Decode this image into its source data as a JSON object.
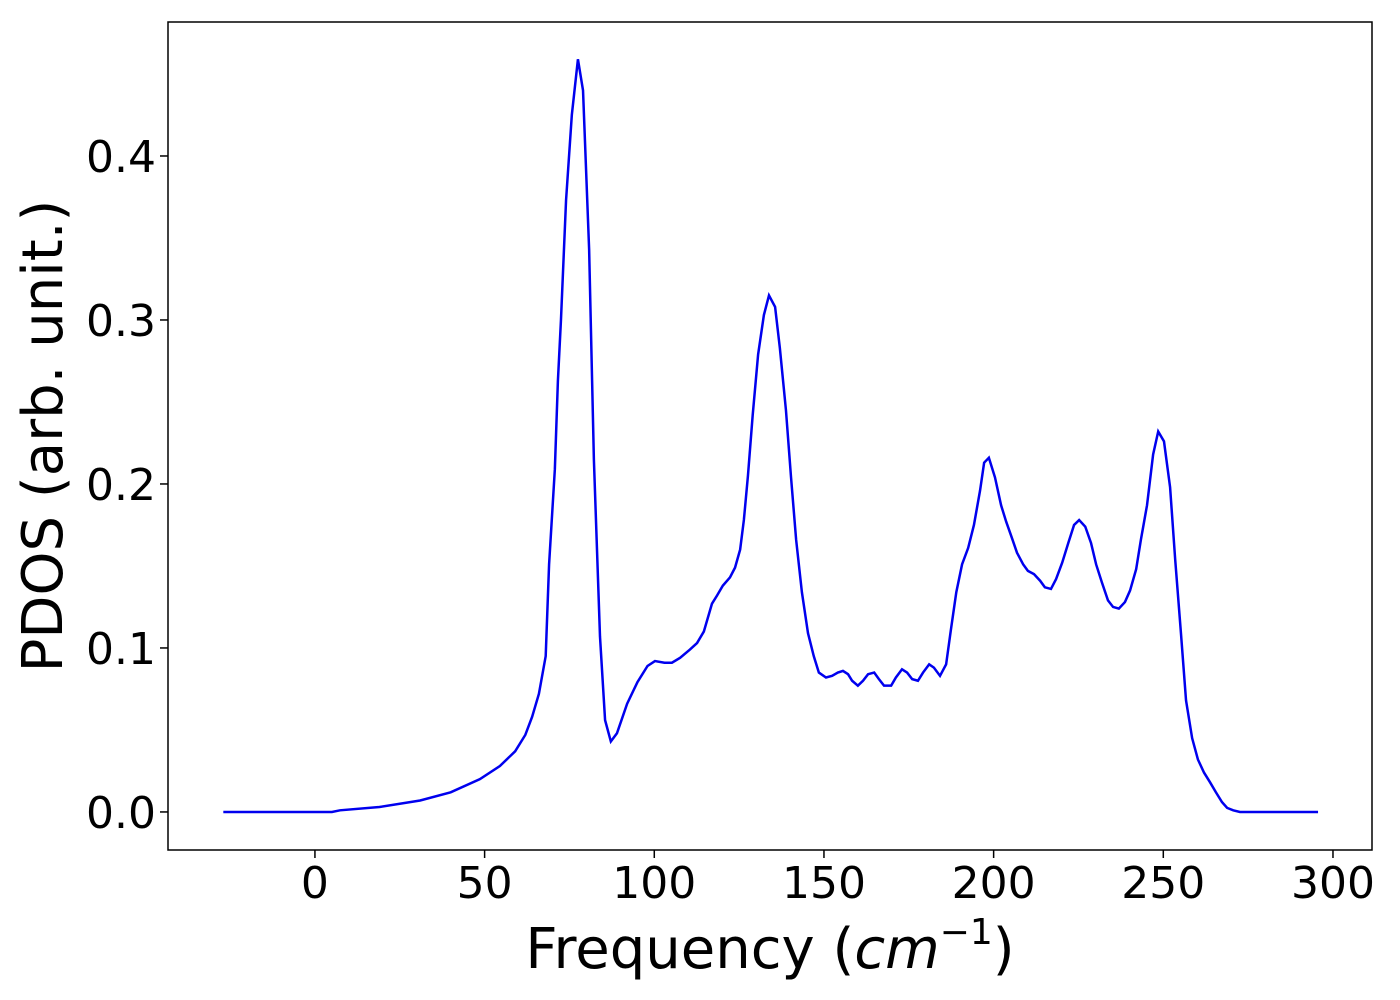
{
  "chart_data": {
    "type": "line",
    "xlabel": [
      "Frequency (",
      "cm",
      "−1",
      ")"
    ],
    "ylabel": "PDOS (arb. unit.)",
    "xlim": [
      -43.3,
      311.5
    ],
    "ylim": [
      -0.0232,
      0.4817
    ],
    "xticks": [
      0,
      50,
      100,
      150,
      200,
      250,
      300
    ],
    "yticks": [
      {
        "value": 0,
        "label": "0.0"
      },
      0.1,
      0.2,
      0.3,
      0.4
    ],
    "x": [
      -27,
      5,
      7.4,
      19,
      31,
      40,
      48.6,
      54.5,
      59,
      62,
      64,
      66,
      68,
      69,
      70.7,
      71.6,
      72.5,
      74,
      75.7,
      77.5,
      79,
      80.8,
      82.2,
      84,
      85.5,
      87.2,
      89,
      92,
      95,
      98,
      100.2,
      103,
      105.2,
      107.6,
      110.5,
      112.6,
      114.6,
      117,
      118.5,
      120.2,
      122.3,
      123.8,
      125.3,
      126.4,
      127.6,
      129,
      130.6,
      132.3,
      133.8,
      135.6,
      137,
      138.8,
      140.3,
      141.8,
      143.5,
      145.3,
      147,
      148.5,
      150.6,
      152.4,
      154.1,
      155.6,
      157.1,
      158.3,
      160,
      161.5,
      163,
      164.8,
      166.2,
      167.7,
      169.8,
      171.2,
      173,
      174.5,
      176,
      177.7,
      179.2,
      181,
      182.4,
      184.2,
      186,
      187.4,
      189,
      190.7,
      192.5,
      194.2,
      196,
      197.2,
      198.6,
      200.4,
      202.2,
      203.7,
      205.4,
      206.9,
      208.7,
      210.1,
      211.9,
      213.7,
      215.1,
      216.9,
      218.4,
      220.2,
      222,
      223.7,
      225.2,
      227,
      228.7,
      230.2,
      231.9,
      233.7,
      235.2,
      236.9,
      238.7,
      240.2,
      242,
      243.4,
      245.2,
      247,
      248.5,
      250.2,
      252,
      253.5,
      255.2,
      256.7,
      258.5,
      260.2,
      262,
      263.8,
      265.5,
      267.3,
      268.8,
      270.6,
      272.6,
      295.6
    ],
    "series": [
      {
        "color": "#0000ee",
        "values": [
          0,
          0,
          0.001,
          0.003,
          0.007,
          0.012,
          0.02,
          0.028,
          0.037,
          0.047,
          0.058,
          0.072,
          0.095,
          0.151,
          0.209,
          0.263,
          0.3,
          0.373,
          0.425,
          0.459,
          0.44,
          0.343,
          0.215,
          0.107,
          0.056,
          0.043,
          0.048,
          0.066,
          0.079,
          0.089,
          0.092,
          0.091,
          0.091,
          0.094,
          0.099,
          0.103,
          0.11,
          0.127,
          0.132,
          0.138,
          0.143,
          0.149,
          0.16,
          0.178,
          0.205,
          0.242,
          0.279,
          0.303,
          0.315,
          0.308,
          0.283,
          0.245,
          0.204,
          0.166,
          0.134,
          0.109,
          0.095,
          0.085,
          0.082,
          0.083,
          0.085,
          0.086,
          0.084,
          0.08,
          0.077,
          0.08,
          0.084,
          0.085,
          0.081,
          0.077,
          0.077,
          0.082,
          0.087,
          0.085,
          0.081,
          0.08,
          0.085,
          0.09,
          0.088,
          0.083,
          0.09,
          0.111,
          0.134,
          0.151,
          0.161,
          0.175,
          0.196,
          0.213,
          0.216,
          0.204,
          0.187,
          0.177,
          0.167,
          0.158,
          0.151,
          0.147,
          0.145,
          0.141,
          0.137,
          0.136,
          0.142,
          0.152,
          0.164,
          0.175,
          0.178,
          0.174,
          0.164,
          0.151,
          0.14,
          0.129,
          0.125,
          0.124,
          0.128,
          0.135,
          0.148,
          0.166,
          0.187,
          0.218,
          0.232,
          0.226,
          0.198,
          0.154,
          0.109,
          0.068,
          0.045,
          0.032,
          0.024,
          0.018,
          0.012,
          0.006,
          0.0025,
          0.001,
          0,
          0
        ]
      }
    ]
  }
}
